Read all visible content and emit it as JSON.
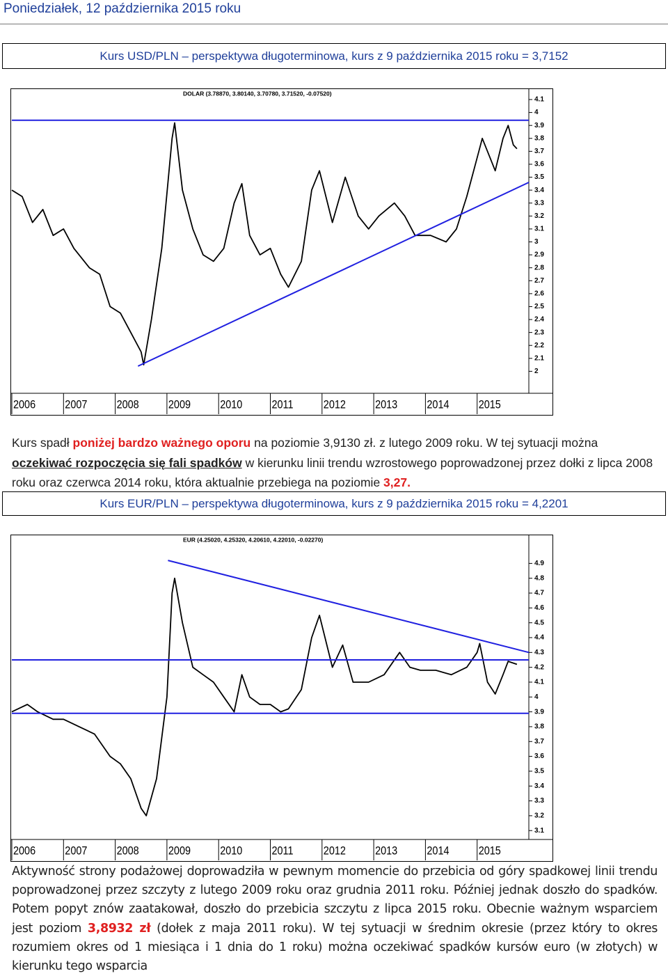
{
  "date": "Poniedziałek, 12 października 2015 roku",
  "box_titles": [
    "Kurs USD/PLN – perspektywa długoterminowa, kurs z 9 października 2015 roku = 3,7152",
    "Kurs EUR/PLN – perspektywa długoterminowa, kurs z 9 października  2015 roku = 4,2201"
  ],
  "paragraphs": [
    [
      "Kurs spadł ",
      "poniżej bardzo ważnego oporu",
      " na poziomie 3,9130 zł. z lutego 2009 roku. W tej sytuacji można",
      " oczekiwać rozpoczęcia się fali spadków",
      " w kierunku linii trendu wzrostowego poprowadzonej przez dołki z lipca 2008 roku oraz czerwca 2014 roku, która aktualnie przebiega na poziomie ",
      "3,27."
    ],
    [
      "Aktywność strony podażowej doprowadziła w pewnym momencie do przebicia od góry spadkowej linii trendu poprowadzonej przez szczyty z lutego 2009 roku oraz grudnia 2011 roku. Później jednak doszło do spadków. Potem popyt znów zaatakował, doszło do przebicia szczytu z lipca 2015 roku. Obecnie ważnym wsparciem jest poziom ",
      "3,8932 zł",
      " (dołek z maja 2011 roku). W tej sytuacji w średnim okresie (przez który to okres rozumiem okres od 1 miesiąca i 1 dnia do 1 roku) można oczekiwać spadków kursów euro (w złotych) w kierunku tego wsparcia"
    ]
  ],
  "chart_data": [
    {
      "type": "line",
      "title": "DOLAR (3.78870, 3.80140, 3.70780, 3.71520, -0.07520)",
      "color": "#000000",
      "x": [
        2006.0,
        2006.2,
        2006.4,
        2006.6,
        2006.8,
        2007.0,
        2007.2,
        2007.5,
        2007.7,
        2007.9,
        2008.1,
        2008.3,
        2008.5,
        2008.55,
        2008.7,
        2008.9,
        2009.1,
        2009.15,
        2009.3,
        2009.5,
        2009.7,
        2009.9,
        2010.1,
        2010.3,
        2010.45,
        2010.6,
        2010.8,
        2011.0,
        2011.2,
        2011.35,
        2011.6,
        2011.8,
        2011.95,
        2012.2,
        2012.45,
        2012.7,
        2012.9,
        2013.1,
        2013.4,
        2013.6,
        2013.8,
        2014.1,
        2014.4,
        2014.6,
        2014.8,
        2015.0,
        2015.1,
        2015.25,
        2015.35,
        2015.5,
        2015.6,
        2015.7,
        2015.77
      ],
      "values": [
        3.4,
        3.35,
        3.15,
        3.25,
        3.05,
        3.1,
        2.95,
        2.8,
        2.75,
        2.5,
        2.45,
        2.3,
        2.15,
        2.05,
        2.4,
        2.95,
        3.8,
        3.92,
        3.4,
        3.1,
        2.9,
        2.85,
        2.95,
        3.3,
        3.45,
        3.05,
        2.9,
        2.95,
        2.75,
        2.65,
        2.85,
        3.4,
        3.55,
        3.15,
        3.5,
        3.2,
        3.1,
        3.2,
        3.3,
        3.2,
        3.05,
        3.05,
        3.0,
        3.1,
        3.35,
        3.65,
        3.8,
        3.65,
        3.55,
        3.8,
        3.9,
        3.75,
        3.72
      ],
      "xlim": [
        2006,
        2016
      ],
      "ylim": [
        1.83,
        4.17
      ],
      "xticks": [
        2006,
        2007,
        2008,
        2009,
        2010,
        2011,
        2012,
        2013,
        2014,
        2015
      ],
      "yticks": [
        4.1,
        4.0,
        3.9,
        3.8,
        3.7,
        3.6,
        3.5,
        3.4,
        3.3,
        3.2,
        3.1,
        3.0,
        2.9,
        2.8,
        2.7,
        2.6,
        2.5,
        2.4,
        2.3,
        2.2,
        2.1,
        2.0
      ],
      "trend_lines": [
        {
          "x": [
            2006,
            2016
          ],
          "values": [
            3.94,
            3.94
          ],
          "color": "#2020e0"
        },
        {
          "x": [
            2008.44,
            2016
          ],
          "values": [
            2.04,
            3.46
          ],
          "color": "#2020e0"
        }
      ]
    },
    {
      "type": "line",
      "title": "EUR (4.25020, 4.25320, 4.20610, 4.22010, -0.02270)",
      "color": "#000000",
      "x": [
        2006.0,
        2006.3,
        2006.5,
        2006.8,
        2007.0,
        2007.3,
        2007.6,
        2007.9,
        2008.1,
        2008.3,
        2008.5,
        2008.6,
        2008.8,
        2009.0,
        2009.1,
        2009.15,
        2009.3,
        2009.5,
        2009.7,
        2009.9,
        2010.1,
        2010.3,
        2010.45,
        2010.6,
        2010.8,
        2011.0,
        2011.2,
        2011.35,
        2011.6,
        2011.8,
        2011.95,
        2012.2,
        2012.4,
        2012.6,
        2012.9,
        2013.2,
        2013.5,
        2013.7,
        2013.9,
        2014.2,
        2014.5,
        2014.8,
        2015.0,
        2015.05,
        2015.2,
        2015.35,
        2015.5,
        2015.6,
        2015.77
      ],
      "values": [
        3.9,
        3.95,
        3.9,
        3.85,
        3.85,
        3.8,
        3.75,
        3.6,
        3.55,
        3.45,
        3.25,
        3.2,
        3.45,
        4.0,
        4.7,
        4.8,
        4.5,
        4.2,
        4.15,
        4.1,
        4.0,
        3.9,
        4.15,
        4.0,
        3.95,
        3.95,
        3.9,
        3.92,
        4.05,
        4.4,
        4.55,
        4.2,
        4.35,
        4.1,
        4.1,
        4.15,
        4.3,
        4.2,
        4.18,
        4.18,
        4.15,
        4.2,
        4.3,
        4.36,
        4.1,
        4.02,
        4.15,
        4.24,
        4.22
      ],
      "xlim": [
        2006,
        2016
      ],
      "ylim": [
        3.04,
        5.08
      ],
      "xticks": [
        2006,
        2007,
        2008,
        2009,
        2010,
        2011,
        2012,
        2013,
        2014,
        2015
      ],
      "yticks": [
        4.9,
        4.8,
        4.7,
        4.6,
        4.5,
        4.4,
        4.3,
        4.2,
        4.1,
        4.0,
        3.9,
        3.8,
        3.7,
        3.6,
        3.5,
        3.4,
        3.3,
        3.2,
        3.1
      ],
      "trend_lines": [
        {
          "x": [
            2009.02,
            2016
          ],
          "values": [
            4.92,
            4.3
          ],
          "color": "#2020e0"
        },
        {
          "x": [
            2006,
            2016
          ],
          "values": [
            4.25,
            4.25
          ],
          "color": "#2020e0"
        },
        {
          "x": [
            2006,
            2016
          ],
          "values": [
            3.89,
            3.89
          ],
          "color": "#2020e0"
        }
      ]
    }
  ]
}
